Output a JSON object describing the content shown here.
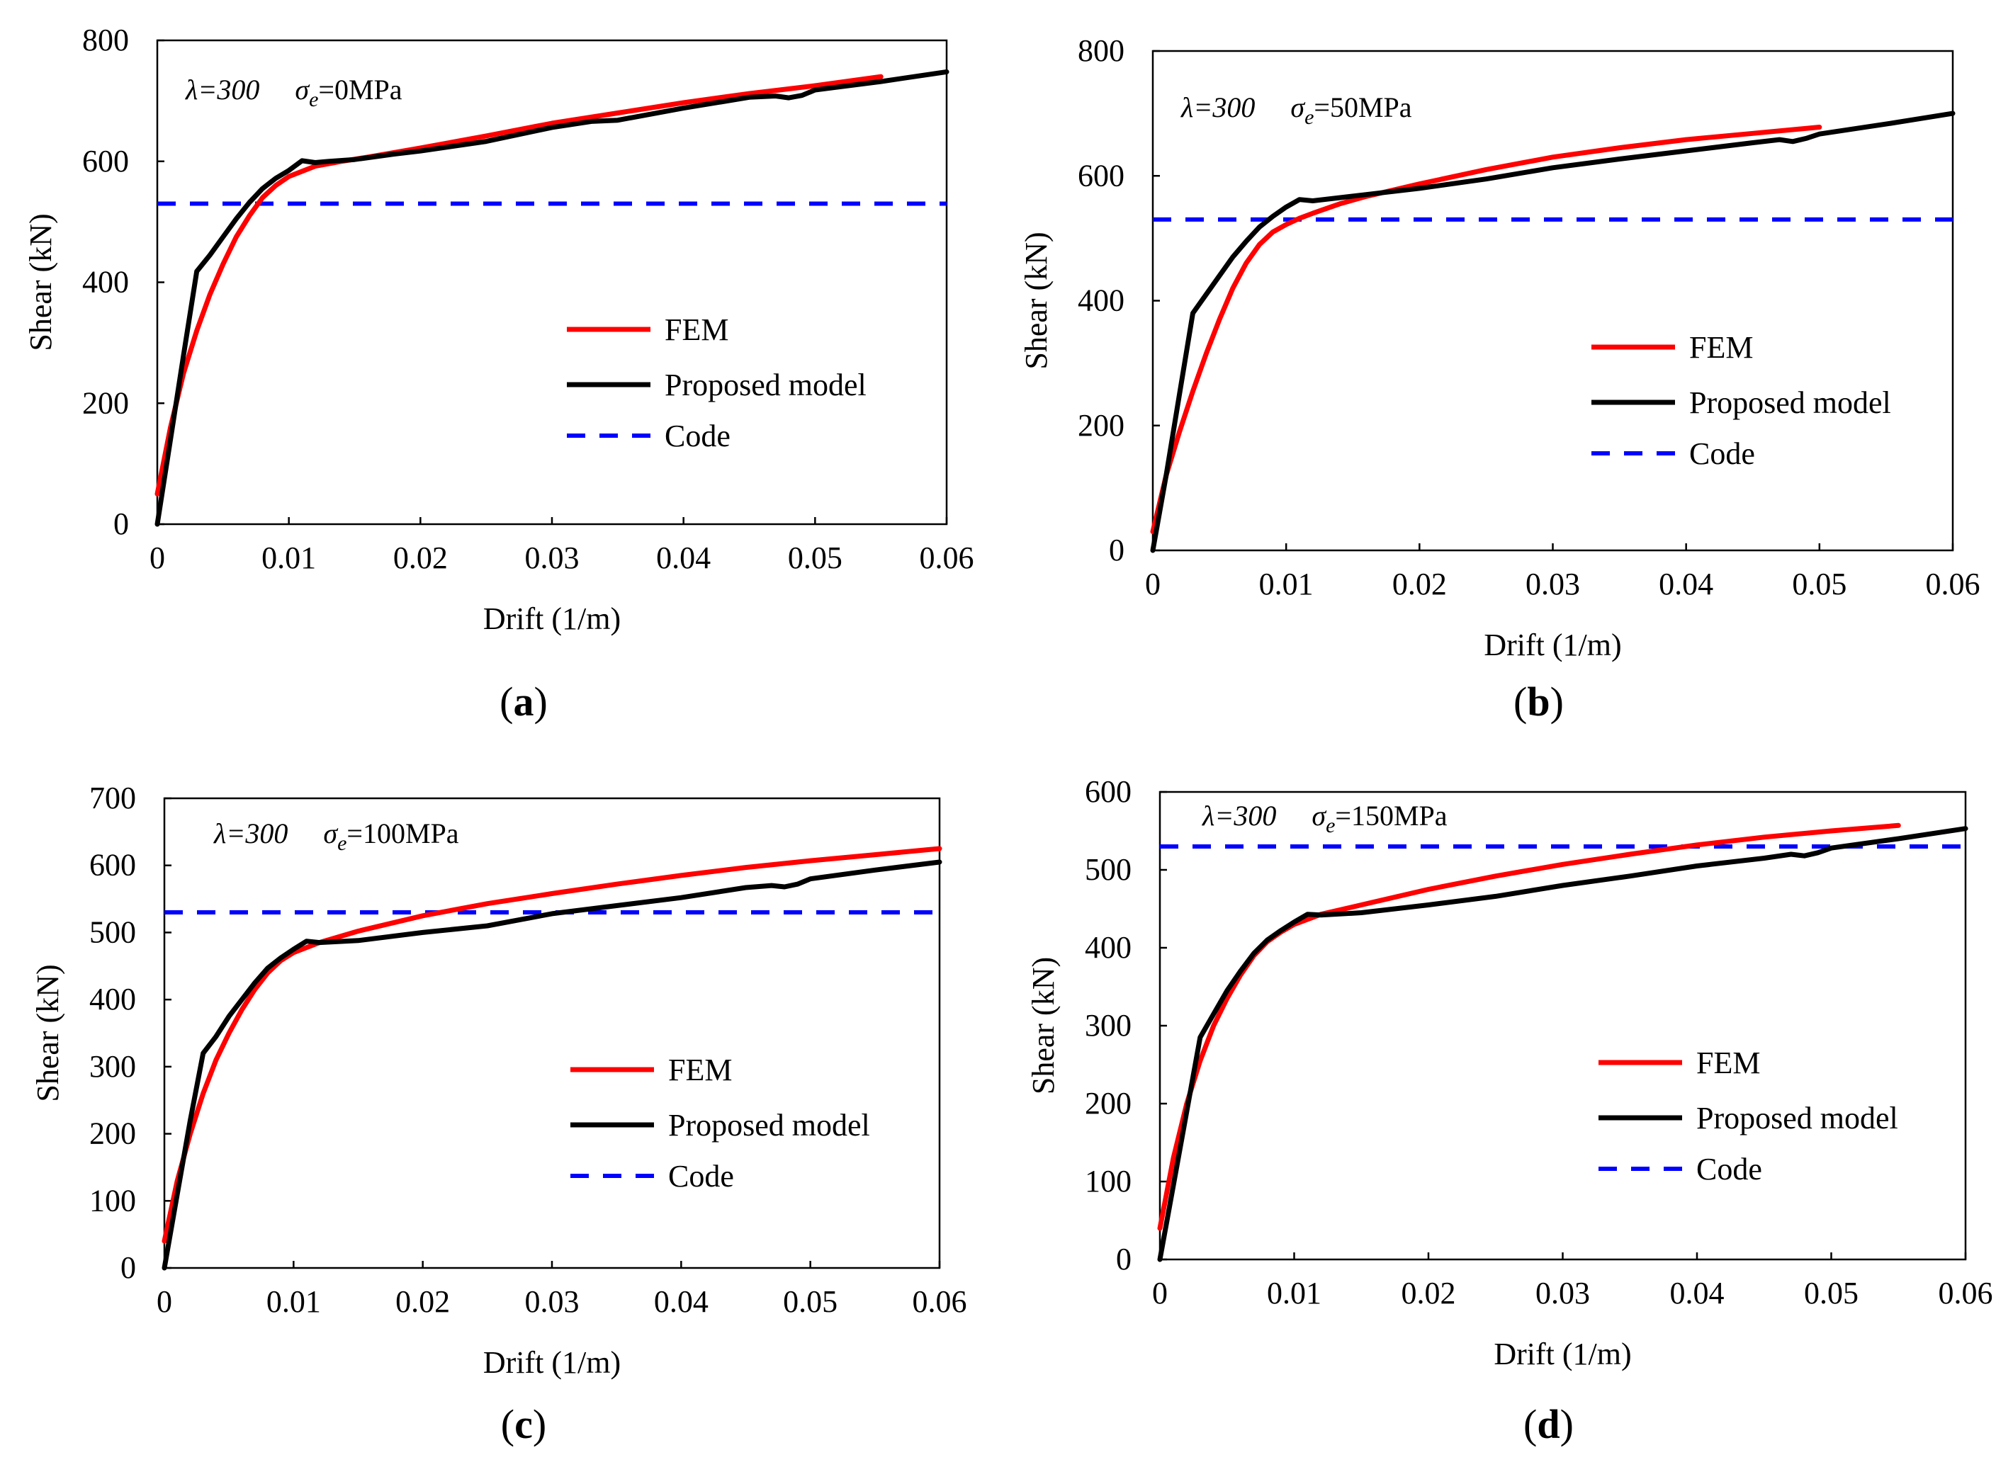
{
  "colors": {
    "fem": "#ff0000",
    "proposed": "#000000",
    "code": "#0000ff"
  },
  "legend_labels": {
    "fem": "FEM",
    "proposed": "Proposed model",
    "code": "Code"
  },
  "chart_data": [
    {
      "type": "line",
      "panel": "a",
      "annotation": {
        "lambda": "λ=300",
        "sigma_symbol": "σ",
        "sigma_sub": "e",
        "sigma_value": "=0MPa"
      },
      "xlabel": "Drift (1/m)",
      "ylabel": "Shear (kN)",
      "xlim": [
        0,
        0.06
      ],
      "ylim": [
        0,
        800
      ],
      "xticks": [
        0,
        0.01,
        0.02,
        0.03,
        0.04,
        0.05,
        0.06
      ],
      "xtick_labels": [
        "0",
        "0.01",
        "0.02",
        "0.03",
        "0.04",
        "0.05",
        "0.06"
      ],
      "yticks": [
        0,
        200,
        400,
        600,
        800
      ],
      "ytick_labels": [
        "0",
        "200",
        "400",
        "600",
        "800"
      ],
      "legend": [
        "FEM",
        "Proposed model",
        "Code"
      ],
      "series": [
        {
          "name": "FEM",
          "style": "solid",
          "color": "#ff0000",
          "x": [
            0,
            0.001,
            0.002,
            0.003,
            0.004,
            0.005,
            0.006,
            0.007,
            0.008,
            0.009,
            0.01,
            0.012,
            0.014,
            0.016,
            0.02,
            0.025,
            0.03,
            0.035,
            0.04,
            0.045,
            0.05,
            0.055
          ],
          "y": [
            50,
            160,
            250,
            320,
            380,
            430,
            475,
            510,
            540,
            560,
            575,
            592,
            600,
            607,
            622,
            642,
            663,
            680,
            697,
            712,
            725,
            740
          ]
        },
        {
          "name": "Proposed model",
          "style": "solid",
          "color": "#000000",
          "x": [
            0,
            0.001,
            0.002,
            0.003,
            0.004,
            0.005,
            0.006,
            0.007,
            0.008,
            0.009,
            0.01,
            0.011,
            0.012,
            0.013,
            0.015,
            0.018,
            0.02,
            0.025,
            0.03,
            0.033,
            0.035,
            0.04,
            0.045,
            0.047,
            0.048,
            0.049,
            0.05,
            0.055,
            0.06
          ],
          "y": [
            0,
            140,
            280,
            418,
            445,
            475,
            505,
            532,
            555,
            572,
            585,
            601,
            598,
            600,
            603,
            612,
            617,
            633,
            656,
            666,
            668,
            688,
            706,
            708,
            705,
            709,
            718,
            732,
            748
          ]
        },
        {
          "name": "Code",
          "style": "dashed",
          "color": "#0000ff",
          "x": [
            0,
            0.06
          ],
          "y": [
            530,
            530
          ]
        }
      ]
    },
    {
      "type": "line",
      "panel": "b",
      "annotation": {
        "lambda": "λ=300",
        "sigma_symbol": "σ",
        "sigma_sub": "e",
        "sigma_value": "=50MPa"
      },
      "xlabel": "Drift (1/m)",
      "ylabel": "Shear (kN)",
      "xlim": [
        0,
        0.06
      ],
      "ylim": [
        0,
        800
      ],
      "xticks": [
        0,
        0.01,
        0.02,
        0.03,
        0.04,
        0.05,
        0.06
      ],
      "xtick_labels": [
        "0",
        "0.01",
        "0.02",
        "0.03",
        "0.04",
        "0.05",
        "0.06"
      ],
      "yticks": [
        0,
        200,
        400,
        600,
        800
      ],
      "ytick_labels": [
        "0",
        "200",
        "400",
        "600",
        "800"
      ],
      "legend": [
        "FEM",
        "Proposed model",
        "Code"
      ],
      "series": [
        {
          "name": "FEM",
          "style": "solid",
          "color": "#ff0000",
          "x": [
            0,
            0.001,
            0.002,
            0.003,
            0.004,
            0.005,
            0.006,
            0.007,
            0.008,
            0.009,
            0.01,
            0.011,
            0.012,
            0.014,
            0.016,
            0.02,
            0.025,
            0.03,
            0.035,
            0.04,
            0.045,
            0.05
          ],
          "y": [
            30,
            120,
            190,
            255,
            315,
            370,
            420,
            460,
            490,
            510,
            522,
            532,
            540,
            555,
            567,
            587,
            610,
            630,
            645,
            658,
            668,
            678
          ]
        },
        {
          "name": "Proposed model",
          "style": "solid",
          "color": "#000000",
          "x": [
            0,
            0.001,
            0.002,
            0.003,
            0.004,
            0.005,
            0.006,
            0.007,
            0.008,
            0.009,
            0.01,
            0.011,
            0.012,
            0.014,
            0.016,
            0.02,
            0.025,
            0.03,
            0.035,
            0.04,
            0.045,
            0.047,
            0.048,
            0.049,
            0.05,
            0.055,
            0.06
          ],
          "y": [
            0,
            120,
            250,
            380,
            410,
            440,
            470,
            495,
            518,
            535,
            550,
            562,
            560,
            565,
            570,
            580,
            595,
            613,
            627,
            640,
            653,
            658,
            655,
            660,
            667,
            683,
            700
          ]
        },
        {
          "name": "Code",
          "style": "dashed",
          "color": "#0000ff",
          "x": [
            0,
            0.06
          ],
          "y": [
            530,
            530
          ]
        }
      ]
    },
    {
      "type": "line",
      "panel": "c",
      "annotation": {
        "lambda": "λ=300",
        "sigma_symbol": "σ",
        "sigma_sub": "e",
        "sigma_value": "=100MPa"
      },
      "xlabel": "Drift (1/m)",
      "ylabel": "Shear (kN)",
      "xlim": [
        0,
        0.06
      ],
      "ylim": [
        0,
        700
      ],
      "xticks": [
        0,
        0.01,
        0.02,
        0.03,
        0.04,
        0.05,
        0.06
      ],
      "xtick_labels": [
        "0",
        "0.01",
        "0.02",
        "0.03",
        "0.04",
        "0.05",
        "0.06"
      ],
      "yticks": [
        0,
        100,
        200,
        300,
        400,
        500,
        600,
        700
      ],
      "ytick_labels": [
        "0",
        "100",
        "200",
        "300",
        "400",
        "500",
        "600",
        "700"
      ],
      "legend": [
        "FEM",
        "Proposed model",
        "Code"
      ],
      "series": [
        {
          "name": "FEM",
          "style": "solid",
          "color": "#ff0000",
          "x": [
            0,
            0.001,
            0.002,
            0.003,
            0.004,
            0.005,
            0.006,
            0.007,
            0.008,
            0.009,
            0.01,
            0.012,
            0.015,
            0.02,
            0.025,
            0.03,
            0.035,
            0.04,
            0.045,
            0.05,
            0.055,
            0.06
          ],
          "y": [
            40,
            130,
            200,
            260,
            310,
            350,
            385,
            415,
            440,
            458,
            470,
            485,
            502,
            525,
            543,
            558,
            572,
            585,
            597,
            607,
            616,
            625
          ]
        },
        {
          "name": "Proposed model",
          "style": "solid",
          "color": "#000000",
          "x": [
            0,
            0.001,
            0.002,
            0.003,
            0.004,
            0.005,
            0.006,
            0.007,
            0.008,
            0.009,
            0.01,
            0.011,
            0.012,
            0.015,
            0.02,
            0.025,
            0.03,
            0.035,
            0.04,
            0.045,
            0.047,
            0.048,
            0.049,
            0.05,
            0.055,
            0.06
          ],
          "y": [
            0,
            110,
            220,
            320,
            345,
            375,
            400,
            425,
            447,
            462,
            475,
            487,
            485,
            488,
            500,
            510,
            528,
            540,
            552,
            567,
            570,
            568,
            572,
            580,
            593,
            605
          ]
        },
        {
          "name": "Code",
          "style": "dashed",
          "color": "#0000ff",
          "x": [
            0,
            0.06
          ],
          "y": [
            530,
            530
          ]
        }
      ]
    },
    {
      "type": "line",
      "panel": "d",
      "annotation": {
        "lambda": "λ=300",
        "sigma_symbol": "σ",
        "sigma_sub": "e",
        "sigma_value": "=150MPa"
      },
      "xlabel": "Drift (1/m)",
      "ylabel": "Shear (kN)",
      "xlim": [
        0,
        0.06
      ],
      "ylim": [
        0,
        600
      ],
      "xticks": [
        0,
        0.01,
        0.02,
        0.03,
        0.04,
        0.05,
        0.06
      ],
      "xtick_labels": [
        "0",
        "0.01",
        "0.02",
        "0.03",
        "0.04",
        "0.05",
        "0.06"
      ],
      "yticks": [
        0,
        100,
        200,
        300,
        400,
        500,
        600
      ],
      "ytick_labels": [
        "0",
        "100",
        "200",
        "300",
        "400",
        "500",
        "600"
      ],
      "legend": [
        "FEM",
        "Proposed model",
        "Code"
      ],
      "series": [
        {
          "name": "FEM",
          "style": "solid",
          "color": "#ff0000",
          "x": [
            0,
            0.001,
            0.002,
            0.003,
            0.004,
            0.005,
            0.006,
            0.007,
            0.008,
            0.009,
            0.01,
            0.012,
            0.015,
            0.02,
            0.025,
            0.03,
            0.035,
            0.04,
            0.045,
            0.05,
            0.055
          ],
          "y": [
            40,
            130,
            200,
            255,
            300,
            335,
            365,
            390,
            408,
            420,
            430,
            443,
            455,
            475,
            492,
            507,
            520,
            532,
            542,
            550,
            557
          ]
        },
        {
          "name": "Proposed model",
          "style": "solid",
          "color": "#000000",
          "x": [
            0,
            0.001,
            0.002,
            0.003,
            0.004,
            0.005,
            0.006,
            0.007,
            0.008,
            0.009,
            0.01,
            0.011,
            0.012,
            0.015,
            0.02,
            0.025,
            0.03,
            0.035,
            0.04,
            0.045,
            0.047,
            0.048,
            0.049,
            0.05,
            0.055,
            0.06
          ],
          "y": [
            0,
            95,
            190,
            285,
            315,
            345,
            370,
            393,
            410,
            422,
            433,
            443,
            442,
            445,
            455,
            466,
            480,
            492,
            505,
            515,
            520,
            518,
            522,
            528,
            540,
            553
          ]
        },
        {
          "name": "Code",
          "style": "dashed",
          "color": "#0000ff",
          "x": [
            0,
            0.06
          ],
          "y": [
            530,
            530
          ]
        }
      ]
    }
  ],
  "panel_labels": [
    {
      "open": "(",
      "letter": "a",
      "close": ")"
    },
    {
      "open": "(",
      "letter": "b",
      "close": ")"
    },
    {
      "open": "(",
      "letter": "c",
      "close": ")"
    },
    {
      "open": "(",
      "letter": "d",
      "close": ")"
    }
  ]
}
